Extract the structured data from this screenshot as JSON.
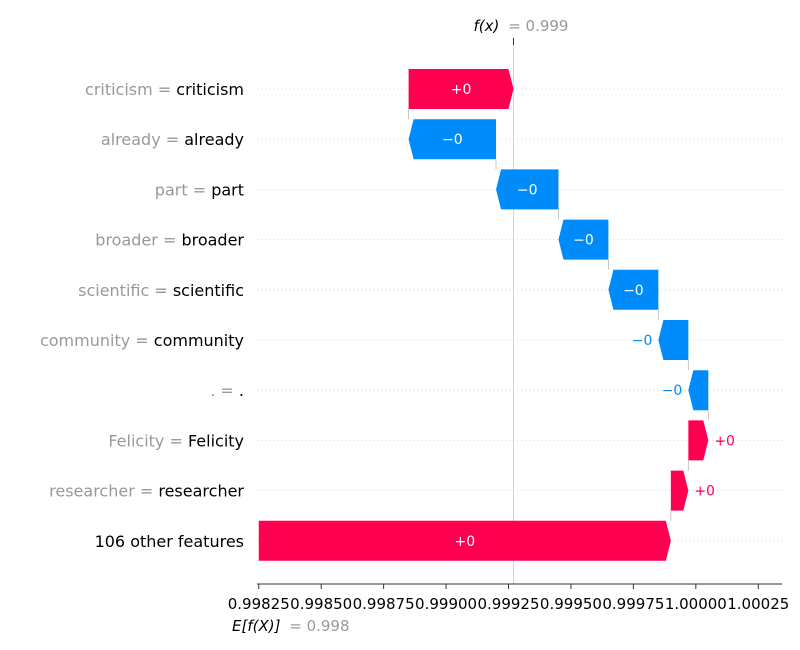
{
  "chart_data": {
    "type": "waterfall",
    "fx_label": "f(x)",
    "fx_value": "= 0.999",
    "ex_label": "E[f(X)]",
    "ex_value": "= 0.998",
    "features": [
      {
        "name": "criticism",
        "value": "criticism",
        "label": "+0",
        "start": 0.99885,
        "end": 0.99927
      },
      {
        "name": "already",
        "value": "already",
        "label": "−0",
        "start": 0.9992,
        "end": 0.99885
      },
      {
        "name": "part",
        "value": "part",
        "label": "−0",
        "start": 0.99945,
        "end": 0.9992
      },
      {
        "name": "broader",
        "value": "broader",
        "label": "−0",
        "start": 0.99965,
        "end": 0.99945
      },
      {
        "name": "scientific",
        "value": "scientific",
        "label": "−0",
        "start": 0.99985,
        "end": 0.99965
      },
      {
        "name": "community",
        "value": "community",
        "label": "−0",
        "start": 0.99997,
        "end": 0.99985
      },
      {
        "name": ".",
        "value": ".",
        "label": "−0",
        "start": 1.00005,
        "end": 0.99997
      },
      {
        "name": "Felicity",
        "value": "Felicity",
        "label": "+0",
        "start": 0.99997,
        "end": 1.00005
      },
      {
        "name": "researcher",
        "value": "researcher",
        "label": "+0",
        "start": 0.9999,
        "end": 0.99997
      },
      {
        "name": "",
        "value": "106 other features",
        "label": "+0",
        "start": 0.99825,
        "end": 0.9999
      }
    ],
    "x_ticks": [
      "0.99825",
      "0.99850",
      "0.99875",
      "0.99900",
      "0.99925",
      "0.99950",
      "0.99975",
      "1.00000",
      "1.00025"
    ],
    "x_tick_values": [
      0.99825,
      0.9985,
      0.99875,
      0.999,
      0.99925,
      0.9995,
      0.99975,
      1.0,
      1.00025
    ],
    "xlim": [
      0.998243,
      1.000345
    ],
    "fx_position": 0.99927,
    "colors": {
      "positive": "#ff0051",
      "negative": "#008bfb",
      "feature_name": "#999999",
      "feature_value": "#000000"
    }
  }
}
